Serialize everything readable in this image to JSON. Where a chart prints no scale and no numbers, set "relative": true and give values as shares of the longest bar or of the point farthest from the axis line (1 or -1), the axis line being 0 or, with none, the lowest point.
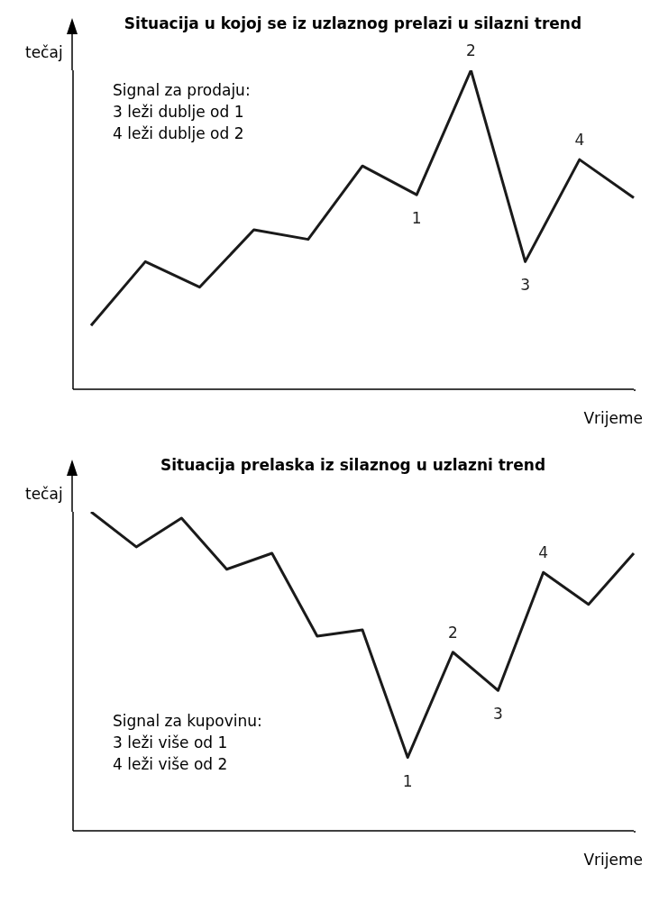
{
  "chart_data": [
    {
      "type": "line",
      "title": "Situacija u kojoj se iz uzlaznog prelazi u silazni trend",
      "ylabel": "tečaj",
      "xlabel": "Vrijeme",
      "relative": true,
      "categories": [
        null,
        null,
        null,
        null,
        null,
        null,
        null,
        null,
        null,
        null,
        null
      ],
      "series": [
        {
          "color": "#1a1a1a",
          "values": [
            0.2,
            0.4,
            0.32,
            0.5,
            0.47,
            0.7,
            0.61,
            1,
            0.4,
            0.72,
            0.6
          ]
        }
      ],
      "annotations": [
        "Signal za prodaju:\n3 leži dublje od 1\n4 leži dublje od 2",
        {
          "text": "1",
          "y": 0.61
        },
        {
          "text": "2",
          "y": 1
        },
        {
          "text": "3",
          "y": 0.4
        },
        {
          "text": "4",
          "y": 0.72
        }
      ],
      "legend": false,
      "grid": false,
      "marker": "none",
      "line_style": "solid"
    },
    {
      "type": "line",
      "title": "Situacija prelaska iz silaznog u uzlazni trend",
      "ylabel": "tečaj",
      "xlabel": "Vrijeme",
      "relative": true,
      "categories": [
        null,
        null,
        null,
        null,
        null,
        null,
        null,
        null,
        null,
        null,
        null,
        null,
        null
      ],
      "series": [
        {
          "color": "#1a1a1a",
          "values": [
            1,
            0.89,
            0.98,
            0.82,
            0.87,
            0.61,
            0.63,
            0.23,
            0.56,
            0.44,
            0.81,
            0.71,
            0.87
          ]
        }
      ],
      "annotations": [
        "Signal za kupovinu:\n3 leži više od 1\n4 leži više od 2",
        {
          "text": "1",
          "y": 0.23
        },
        {
          "text": "2",
          "y": 0.56
        },
        {
          "text": "3",
          "y": 0.44
        },
        {
          "text": "4",
          "y": 0.81
        }
      ],
      "legend": false,
      "grid": false,
      "marker": "none",
      "line_style": "solid"
    }
  ]
}
